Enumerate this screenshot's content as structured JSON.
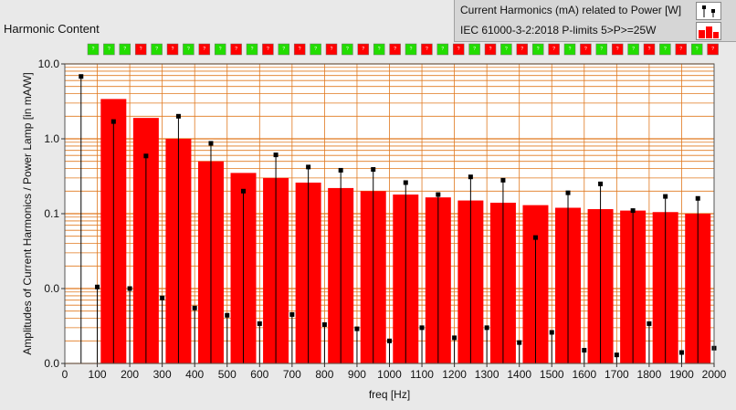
{
  "window": {
    "title": "Harmonic Content"
  },
  "legend": {
    "items": [
      {
        "label": "Current Harmonics (mA) related to Power [W]",
        "icon": "scatter-stem-icon"
      },
      {
        "label": "IEC 61000-3-2:2018 P-limits 5>P>=25W",
        "icon": "bar-red-icon"
      }
    ]
  },
  "colors": {
    "bar": "#ff0000",
    "grid": "#e0781e",
    "plot_bg": "#ffffff",
    "indicator_ok": "#22dd00",
    "indicator_fail": "#ff0000"
  },
  "status_indicators": [
    "ok",
    "ok",
    "ok",
    "fail",
    "ok",
    "fail",
    "ok",
    "fail",
    "ok",
    "fail",
    "ok",
    "fail",
    "ok",
    "fail",
    "ok",
    "fail",
    "ok",
    "fail",
    "ok",
    "fail",
    "ok",
    "fail",
    "ok",
    "fail",
    "ok",
    "fail",
    "ok",
    "fail",
    "ok",
    "fail",
    "ok",
    "fail",
    "ok",
    "fail",
    "ok",
    "fail",
    "ok",
    "fail",
    "ok",
    "fail"
  ],
  "chart_data": {
    "type": "bar",
    "title": "Harmonic Content",
    "xlabel": "freq [Hz]",
    "ylabel": "Amplitudes of Current Harmonics / Power Lamp [in mA/W]",
    "xlim": [
      0,
      2000
    ],
    "ylim": [
      0.001,
      10
    ],
    "yscale": "log",
    "xticks": [
      0,
      100,
      200,
      300,
      400,
      500,
      600,
      700,
      800,
      900,
      1000,
      1100,
      1200,
      1300,
      1400,
      1500,
      1600,
      1700,
      1800,
      1900,
      2000
    ],
    "yticks": [
      {
        "value": 10,
        "label": "10.0"
      },
      {
        "value": 1,
        "label": "1.0"
      },
      {
        "value": 0.1,
        "label": "0.1"
      },
      {
        "value": 0.01,
        "label": "0.0"
      },
      {
        "value": 0.001,
        "label": "0.0"
      }
    ],
    "grid": true,
    "legend_position": "top-right",
    "series": [
      {
        "name": "IEC 61000-3-2:2018 P-limits 5>P>=25W",
        "type": "bar",
        "x": [
          150,
          250,
          350,
          450,
          550,
          650,
          750,
          850,
          950,
          1050,
          1150,
          1250,
          1350,
          1450,
          1550,
          1650,
          1750,
          1850,
          1950
        ],
        "y": [
          3.4,
          1.9,
          1.0,
          0.5,
          0.35,
          0.3,
          0.26,
          0.22,
          0.2,
          0.18,
          0.165,
          0.15,
          0.14,
          0.13,
          0.12,
          0.115,
          0.11,
          0.105,
          0.1
        ]
      },
      {
        "name": "Current Harmonics (mA) related to Power [W]",
        "type": "stem",
        "x": [
          50,
          100,
          150,
          200,
          250,
          300,
          350,
          400,
          450,
          500,
          550,
          600,
          650,
          700,
          750,
          800,
          850,
          900,
          950,
          1000,
          1050,
          1100,
          1150,
          1200,
          1250,
          1300,
          1350,
          1400,
          1450,
          1500,
          1550,
          1600,
          1650,
          1700,
          1750,
          1800,
          1850,
          1900,
          1950,
          2000
        ],
        "y": [
          6.8,
          0.0105,
          1.7,
          0.01,
          0.59,
          0.0075,
          2.0,
          0.0055,
          0.87,
          0.0044,
          0.2,
          0.0034,
          0.61,
          0.0045,
          0.42,
          0.0033,
          0.38,
          0.0029,
          0.39,
          0.002,
          0.26,
          0.003,
          0.18,
          0.0022,
          0.31,
          0.003,
          0.28,
          0.0019,
          0.048,
          0.0026,
          0.19,
          0.0015,
          0.25,
          0.0013,
          0.11,
          0.0034,
          0.17,
          0.0014,
          0.16,
          0.0016
        ]
      }
    ]
  }
}
